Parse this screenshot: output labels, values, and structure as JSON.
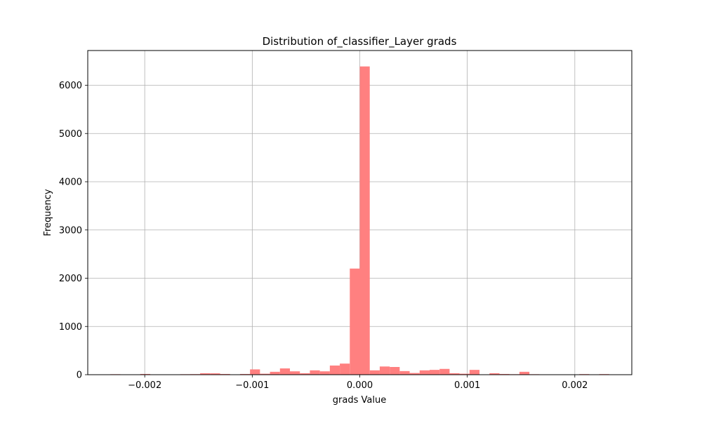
{
  "chart_data": {
    "type": "bar",
    "title": "Distribution of_classifier_Layer grads",
    "xlabel": "grads Value",
    "ylabel": "Frequency",
    "xlim": [
      -0.00253,
      0.00253
    ],
    "ylim": [
      0,
      6720
    ],
    "x_ticks": [
      {
        "value": -0.002,
        "label": "−0.002"
      },
      {
        "value": -0.001,
        "label": "−0.001"
      },
      {
        "value": 0.0,
        "label": "0.000"
      },
      {
        "value": 0.001,
        "label": "0.001"
      },
      {
        "value": 0.002,
        "label": "0.002"
      }
    ],
    "y_ticks": [
      {
        "value": 0,
        "label": "0"
      },
      {
        "value": 1000,
        "label": "1000"
      },
      {
        "value": 2000,
        "label": "2000"
      },
      {
        "value": 3000,
        "label": "3000"
      },
      {
        "value": 4000,
        "label": "4000"
      },
      {
        "value": 5000,
        "label": "5000"
      },
      {
        "value": 6000,
        "label": "6000"
      }
    ],
    "grid": true,
    "bar_color": "#ff8080",
    "bin_start": -0.00232,
    "bin_width": 9.28e-05,
    "values": [
      10,
      0,
      0,
      15,
      0,
      0,
      0,
      10,
      12,
      30,
      28,
      15,
      5,
      15,
      110,
      20,
      60,
      130,
      70,
      30,
      90,
      70,
      190,
      230,
      2200,
      6390,
      90,
      170,
      160,
      75,
      35,
      90,
      100,
      120,
      30,
      20,
      100,
      0,
      30,
      15,
      10,
      60,
      10,
      0,
      0,
      0,
      0,
      12,
      0,
      12
    ]
  }
}
